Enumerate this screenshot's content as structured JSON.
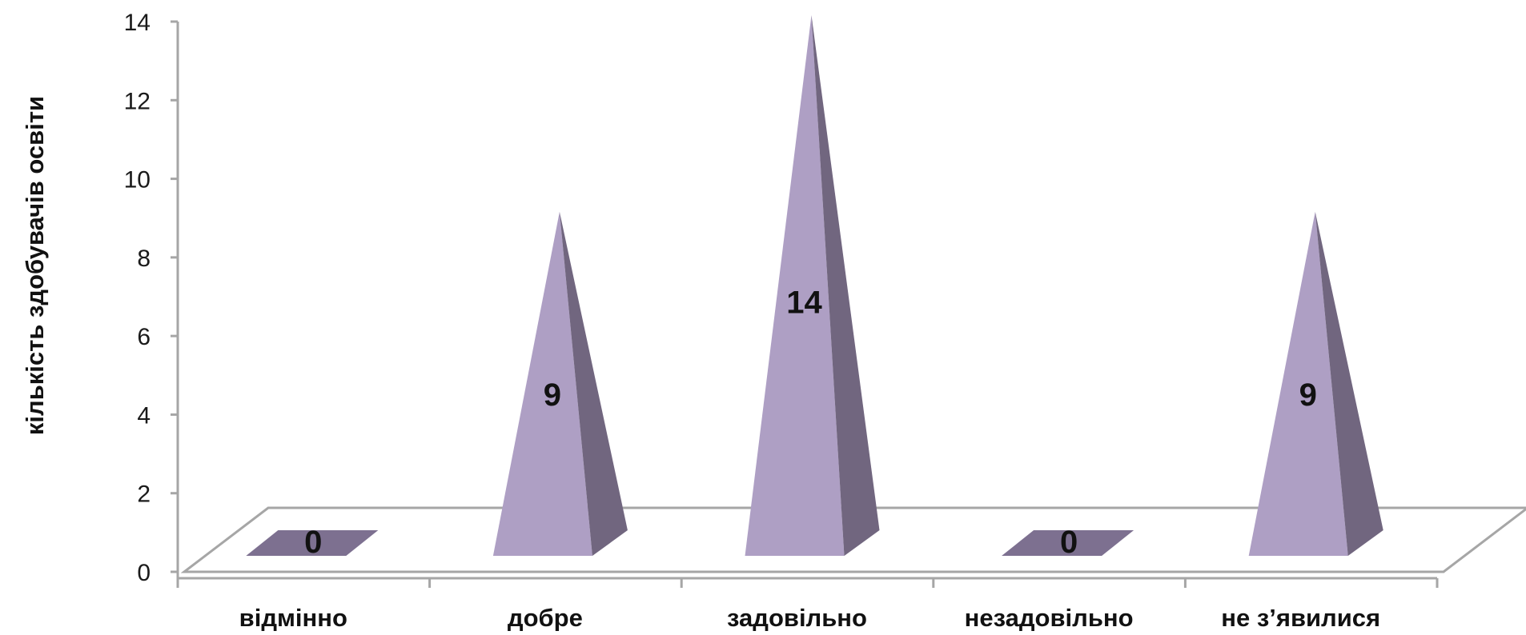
{
  "chart_data": {
    "type": "bar",
    "bar_shape": "pyramid-3d",
    "title": "",
    "xlabel": "",
    "ylabel": "кількість здобувачів освіти",
    "categories": [
      "відмінно",
      "добре",
      "задовільно",
      "незадовільно",
      "не з’явилися"
    ],
    "values": [
      0,
      9,
      14,
      0,
      9
    ],
    "ylim": [
      0,
      14
    ],
    "yticks": [
      0,
      2,
      4,
      6,
      8,
      10,
      12,
      14
    ],
    "grid": false,
    "legend": "none",
    "data_labels": true,
    "colors": {
      "front": "#ae9fc4",
      "side": "#71667f",
      "flat_top": "#7d7090",
      "floor_line": "#a6a6a6",
      "axis": "#a6a6a6",
      "text": "#111111"
    }
  }
}
